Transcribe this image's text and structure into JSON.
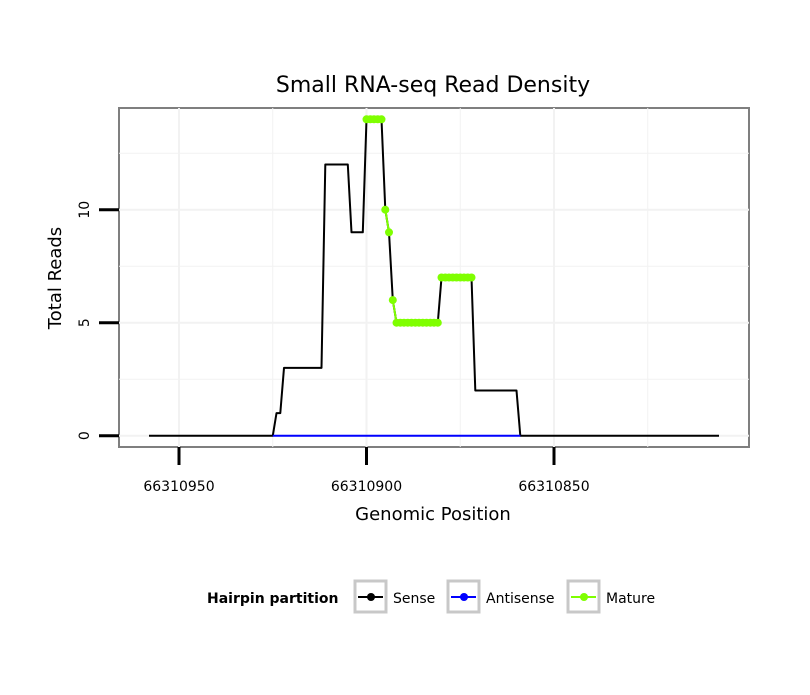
{
  "chart_data": {
    "type": "line",
    "title": "Small RNA-seq Read Density",
    "xlabel": "Genomic Position",
    "ylabel": "Total Reads",
    "x_reversed": true,
    "xlim": [
      66310966,
      66310798
    ],
    "ylim": [
      -0.5,
      14.5
    ],
    "xticks": [
      {
        "value": 66310950,
        "label": "66310950"
      },
      {
        "value": 66310900,
        "label": "66310900"
      },
      {
        "value": 66310850,
        "label": "66310850"
      }
    ],
    "yticks": [
      {
        "value": 0,
        "label": "0"
      },
      {
        "value": 5,
        "label": "5"
      },
      {
        "value": 10,
        "label": "10"
      }
    ],
    "legend": {
      "title": "Hairpin partition",
      "position": "bottom",
      "entries": [
        {
          "label": "Sense",
          "color": "#000000"
        },
        {
          "label": "Antisense",
          "color": "#0000ff"
        },
        {
          "label": "Mature",
          "color": "#7fff00"
        }
      ]
    },
    "series": [
      {
        "name": "Sense",
        "color": "#000000",
        "markers": false,
        "points": [
          [
            66310958,
            0
          ],
          [
            66310925,
            0
          ],
          [
            66310924,
            1
          ],
          [
            66310923,
            1
          ],
          [
            66310922,
            3
          ],
          [
            66310912,
            3
          ],
          [
            66310911,
            12
          ],
          [
            66310905,
            12
          ],
          [
            66310904,
            9
          ],
          [
            66310901,
            9
          ],
          [
            66310900,
            14
          ],
          [
            66310896,
            14
          ],
          [
            66310895,
            10
          ],
          [
            66310894,
            9
          ],
          [
            66310893,
            6
          ],
          [
            66310892,
            5
          ],
          [
            66310881,
            5
          ],
          [
            66310880,
            7
          ],
          [
            66310872,
            7
          ],
          [
            66310871,
            2
          ],
          [
            66310860,
            2
          ],
          [
            66310859,
            0
          ],
          [
            66310806,
            0
          ]
        ]
      },
      {
        "name": "Antisense",
        "color": "#0000ff",
        "markers": false,
        "points": [
          [
            66310925,
            0
          ],
          [
            66310859,
            0
          ]
        ]
      },
      {
        "name": "Mature",
        "color": "#7fff00",
        "markers": true,
        "segments": [
          [
            [
              66310900,
              14
            ],
            [
              66310899,
              14
            ],
            [
              66310898,
              14
            ],
            [
              66310897,
              14
            ],
            [
              66310896,
              14
            ]
          ],
          [
            [
              66310895,
              10
            ],
            [
              66310894,
              9
            ]
          ],
          [
            [
              66310893,
              6
            ],
            [
              66310892,
              5
            ],
            [
              66310891,
              5
            ],
            [
              66310890,
              5
            ],
            [
              66310889,
              5
            ],
            [
              66310888,
              5
            ],
            [
              66310887,
              5
            ],
            [
              66310886,
              5
            ],
            [
              66310885,
              5
            ],
            [
              66310884,
              5
            ],
            [
              66310883,
              5
            ],
            [
              66310882,
              5
            ],
            [
              66310881,
              5
            ]
          ],
          [
            [
              66310880,
              7
            ],
            [
              66310879,
              7
            ],
            [
              66310878,
              7
            ],
            [
              66310877,
              7
            ],
            [
              66310876,
              7
            ],
            [
              66310875,
              7
            ],
            [
              66310874,
              7
            ],
            [
              66310873,
              7
            ],
            [
              66310872,
              7
            ]
          ]
        ]
      }
    ]
  }
}
